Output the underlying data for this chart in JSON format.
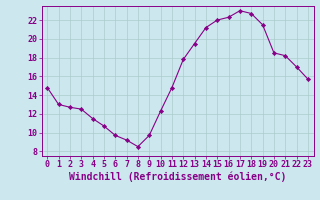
{
  "x": [
    0,
    1,
    2,
    3,
    4,
    5,
    6,
    7,
    8,
    9,
    10,
    11,
    12,
    13,
    14,
    15,
    16,
    17,
    18,
    19,
    20,
    21,
    22,
    23
  ],
  "y": [
    14.8,
    13.0,
    12.7,
    12.5,
    11.5,
    10.7,
    9.7,
    9.2,
    8.5,
    9.7,
    12.3,
    14.8,
    17.8,
    19.5,
    21.2,
    22.0,
    22.3,
    23.0,
    22.7,
    21.5,
    18.5,
    18.2,
    17.0,
    15.7
  ],
  "line_color": "#880088",
  "marker": "D",
  "marker_size": 2.2,
  "bg_color": "#cce8ee",
  "grid_color": "#aacccc",
  "xlabel": "Windchill (Refroidissement éolien,°C)",
  "ylim": [
    7.5,
    23.5
  ],
  "xlim": [
    -0.5,
    23.5
  ],
  "yticks": [
    8,
    10,
    12,
    14,
    16,
    18,
    20,
    22
  ],
  "xticks": [
    0,
    1,
    2,
    3,
    4,
    5,
    6,
    7,
    8,
    9,
    10,
    11,
    12,
    13,
    14,
    15,
    16,
    17,
    18,
    19,
    20,
    21,
    22,
    23
  ],
  "label_color": "#880088",
  "tick_color": "#880088",
  "axis_color": "#880088",
  "xlabel_fontsize": 7.0,
  "tick_fontsize": 6.0
}
